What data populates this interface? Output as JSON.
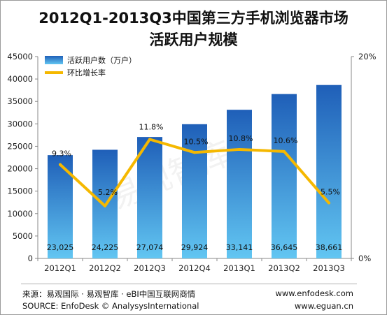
{
  "title": {
    "line1": "2012Q1-2013Q3中国第三方手机浏览器市场",
    "line2": "活跃用户规模"
  },
  "footer": {
    "source_cn": "来源：易观国际 · 易观智库 · eBI中国互联网商情",
    "source_en": "SOURCE: EnfoDesk © AnalysysInternational",
    "url1": "www.enfodesk.com",
    "url2": "www.eguan.cn"
  },
  "watermark": "易观智库",
  "colors": {
    "bar_top": "#1f5fb8",
    "bar_bottom": "#62c6f2",
    "line": "#f5b800"
  },
  "chart_data": {
    "type": "bar",
    "categories": [
      "2012Q1",
      "2012Q2",
      "2012Q3",
      "2012Q4",
      "2013Q1",
      "2013Q2",
      "2013Q3"
    ],
    "series": [
      {
        "name": "活跃用户数（万户）",
        "type": "bar",
        "axis": "left",
        "values": [
          23025,
          24225,
          27074,
          29924,
          33141,
          36645,
          38661
        ],
        "labels": [
          "23,025",
          "24,225",
          "27,074",
          "29,924",
          "33,141",
          "36,645",
          "38,661"
        ]
      },
      {
        "name": "环比增长率",
        "type": "line",
        "axis": "right",
        "values": [
          9.3,
          5.2,
          11.8,
          10.5,
          10.8,
          10.6,
          5.5
        ],
        "labels": [
          "9.3%",
          "5.2%",
          "11.8%",
          "10.5%",
          "10.8%",
          "10.6%",
          "5.5%"
        ]
      }
    ],
    "y_left": {
      "ticks": [
        0,
        5000,
        10000,
        15000,
        20000,
        25000,
        30000,
        35000,
        40000,
        45000
      ],
      "tick_labels": [
        "0",
        "5000",
        "10000",
        "15000",
        "20000",
        "25000",
        "30000",
        "35000",
        "40000",
        "45000"
      ],
      "range": [
        0,
        45000
      ]
    },
    "y_right": {
      "ticks": [
        0,
        20
      ],
      "tick_labels": [
        "0%",
        "20%"
      ],
      "range": [
        0,
        20
      ]
    },
    "grid": false,
    "legend": "top-left"
  }
}
